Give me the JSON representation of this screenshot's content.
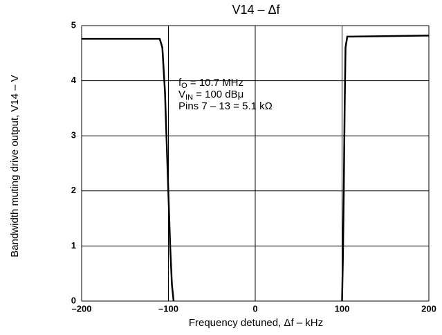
{
  "chart_data": {
    "type": "line",
    "title": "V14  –  Δf",
    "xlabel": "Frequency detuned, Δf – kHz",
    "ylabel": "Bandwidth muting drive output, V14 – V",
    "annotations": [
      {
        "main": "f",
        "sub": "O",
        "rest": " = 10.7 MHz"
      },
      {
        "main": "V",
        "sub": "IN",
        "rest": " = 100 dBμ"
      },
      {
        "main": "Pins 7 – 13 = 5.1 kΩ"
      }
    ],
    "xlim": [
      -200,
      200
    ],
    "ylim": [
      0,
      5
    ],
    "xticks": [
      {
        "value": -200,
        "label": "–200"
      },
      {
        "value": -100,
        "label": "–100"
      },
      0,
      100,
      200
    ],
    "yticks": [
      0,
      1,
      2,
      3,
      4,
      5
    ],
    "grid": true,
    "series": [
      {
        "color": "#000000",
        "x": [
          -200,
          -110,
          -107,
          -104,
          -101,
          -98,
          -96,
          -94
        ],
        "values": [
          4.76,
          4.76,
          4.6,
          3.8,
          2.4,
          1.0,
          0.3,
          0
        ]
      },
      {
        "color": "#000000",
        "x": [
          100,
          101,
          102,
          103,
          104,
          106,
          200
        ],
        "values": [
          0,
          0.8,
          2.0,
          3.5,
          4.6,
          4.8,
          4.82
        ]
      }
    ]
  }
}
